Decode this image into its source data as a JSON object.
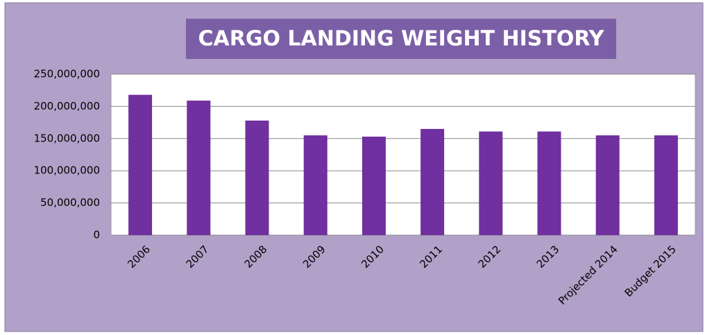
{
  "chart_data": {
    "type": "bar",
    "title": "CARGO LANDING WEIGHT HISTORY",
    "categories": [
      "2006",
      "2007",
      "2008",
      "2009",
      "2010",
      "2011",
      "2012",
      "2013",
      "Projected 2014",
      "Budget 2015"
    ],
    "values": [
      218000000,
      209000000,
      178000000,
      155000000,
      153000000,
      165000000,
      161000000,
      161000000,
      155000000,
      155000000
    ],
    "color": "#7030a0",
    "ylim": [
      0,
      250000000
    ],
    "yticks": [
      0,
      {
        "value": 50000000,
        "label": "50,000,000"
      },
      {
        "value": 100000000,
        "label": "100,000,000"
      },
      {
        "value": 150000000,
        "label": "150,000,000"
      },
      {
        "value": 200000000,
        "label": "200,000,000"
      },
      {
        "value": 250000000,
        "label": "250,000,000"
      }
    ],
    "grid": true
  }
}
